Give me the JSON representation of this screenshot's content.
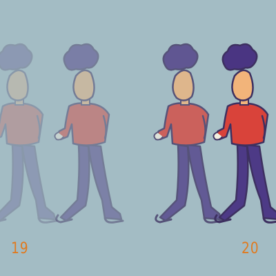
{
  "frames": [
    {
      "number": "19",
      "ghosts": 2,
      "opacity_levels": [
        0.25,
        0.45
      ]
    },
    {
      "number": "20",
      "ghosts": 2,
      "opacity_levels": [
        0.75,
        1.0
      ]
    }
  ],
  "colors": {
    "background": "#a3bcc4",
    "hair": "#4a3582",
    "skin": "#f2b47a",
    "shirt": "#d9433a",
    "pants": "#4d3a86",
    "outline": "#3d3060",
    "label": "#e07a1f"
  }
}
